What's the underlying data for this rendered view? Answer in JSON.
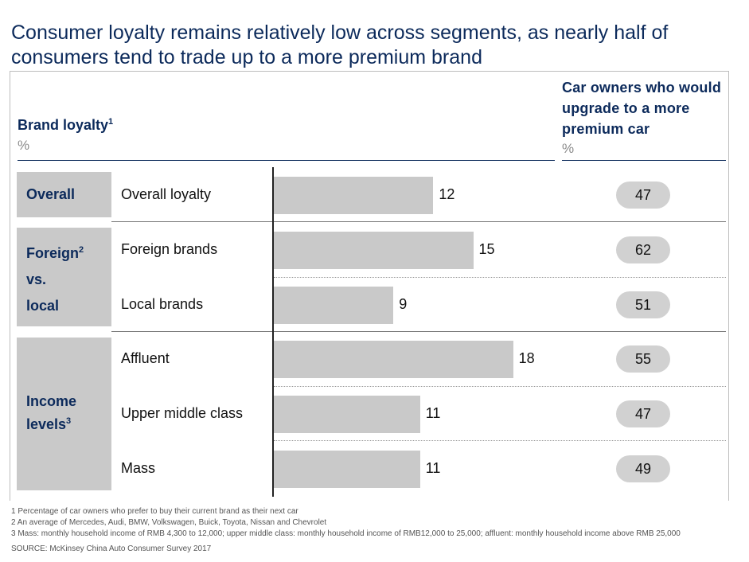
{
  "title": "Consumer loyalty remains relatively low across segments, as nearly half of consumers tend to trade up to a more premium brand",
  "left_header": {
    "label": "Brand loyalty",
    "sup": "1",
    "unit": "%"
  },
  "right_header": {
    "label": "Car owners who would upgrade to a more premium car",
    "unit": "%"
  },
  "segments": [
    {
      "name": "Overall",
      "sup": ""
    },
    {
      "name": "Foreign",
      "sup": "2",
      "line2": "vs.",
      "line3": "local"
    },
    {
      "name": "Income",
      "line2": "levels",
      "sup": "3"
    }
  ],
  "chart_data": {
    "type": "bar",
    "orientation": "horizontal",
    "categories": [
      "Overall loyalty",
      "Foreign brands",
      "Local brands",
      "Affluent",
      "Upper middle class",
      "Mass"
    ],
    "series": [
      {
        "name": "Brand loyalty",
        "values": [
          12,
          15,
          9,
          18,
          11,
          11
        ]
      },
      {
        "name": "Car owners who would upgrade to a more premium car",
        "values": [
          47,
          62,
          51,
          55,
          47,
          49
        ]
      }
    ],
    "xlim": [
      0,
      21
    ],
    "colors": {
      "bar": "#c9c9c9",
      "pill": "#d1d1d1",
      "accent": "#0c2a5b"
    }
  },
  "footnotes": [
    "1 Percentage of car owners who prefer to buy their current brand as their next car",
    "2 An average of Mercedes, Audi, BMW, Volkswagen, Buick, Toyota, Nissan and Chevrolet",
    "3 Mass: monthly household income of RMB 4,300 to 12,000; upper middle class: monthly household income of RMB12,000 to 25,000; affluent: monthly household income above RMB 25,000"
  ],
  "source": "SOURCE: McKinsey China Auto Consumer Survey 2017"
}
